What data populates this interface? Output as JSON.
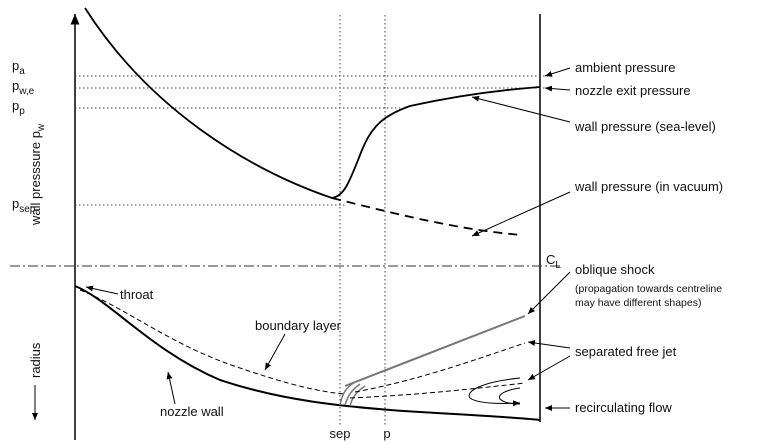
{
  "diagram": {
    "y_axis_label": {
      "text": "wall presssure p",
      "subscript": "w"
    },
    "x_axis_label": "radius",
    "pressure_levels": [
      {
        "symbol": "p",
        "subscript": "a"
      },
      {
        "symbol": "p",
        "subscript": "w,e"
      },
      {
        "symbol": "p",
        "subscript": "p"
      },
      {
        "symbol": "p",
        "subscript": "sep"
      }
    ],
    "position_labels": [
      "sep",
      "p"
    ],
    "centerline": {
      "symbol": "C",
      "subscript": "L"
    },
    "annotations": {
      "ambient": "ambient pressure",
      "nozzle_exit": "nozzle exit pressure",
      "sea_level": "wall pressure  (sea-level)",
      "vacuum": "wall pressure (in vacuum)",
      "oblique_shock": "oblique shock",
      "oblique_note": [
        "(propagation towards centreline",
        "may have different shapes)"
      ],
      "throat": "throat",
      "boundary_layer": "boundary layer",
      "free_jet": "separated free jet",
      "nozzle_wall": "nozzle wall",
      "recirculating": "recirculating flow"
    }
  }
}
